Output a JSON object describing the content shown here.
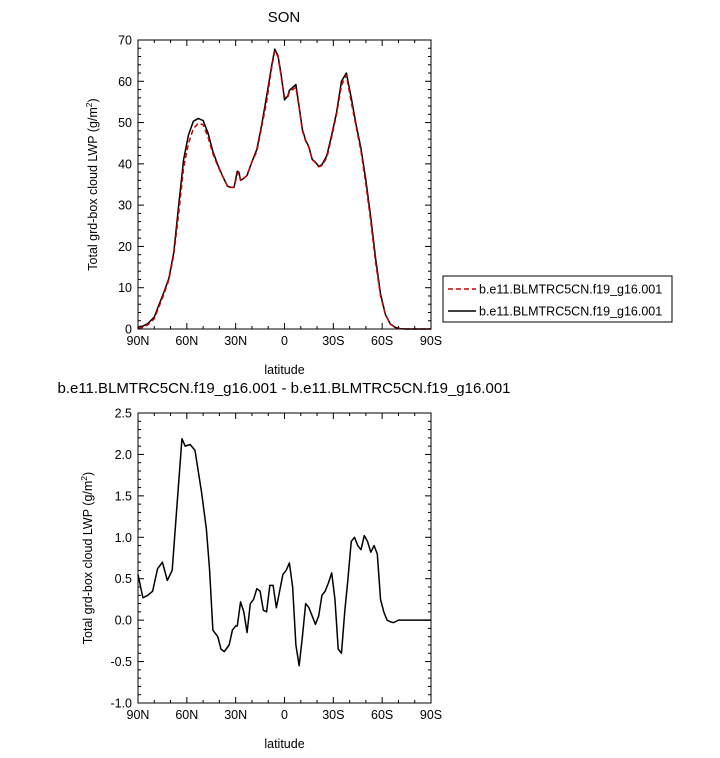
{
  "chart_data": [
    {
      "type": "line",
      "title": "SON",
      "xlabel": "latitude",
      "ylabel": "Total grd-box cloud LWP",
      "yunit_base": "g/m",
      "yunit_sup": "2",
      "xlim": [
        90,
        -90
      ],
      "ylim": [
        0,
        70
      ],
      "x_ticks": [
        90,
        60,
        30,
        0,
        -30,
        -60,
        -90
      ],
      "x_tick_labels": [
        "90N",
        "60N",
        "30N",
        "0",
        "30S",
        "60S",
        "90S"
      ],
      "y_ticks": [
        0,
        10,
        20,
        30,
        40,
        50,
        60,
        70
      ],
      "y_tick_labels": [
        "0",
        "10",
        "20",
        "30",
        "40",
        "50",
        "60",
        "70"
      ],
      "legend": "right",
      "series": [
        {
          "name": "b.e11.BLMTRC5CN.f19_g16.001",
          "color": "#cc0000",
          "dash": "dashed",
          "x": [
            90,
            87,
            84,
            80,
            77,
            74,
            71,
            68,
            65,
            62,
            59,
            56,
            53,
            50,
            47,
            44,
            41,
            38,
            35,
            33,
            31,
            29,
            28,
            27,
            25,
            23,
            20,
            17,
            14,
            11,
            8,
            6,
            4,
            2,
            0,
            -2,
            -3,
            -5,
            -7,
            -9,
            -11,
            -13,
            -15,
            -17,
            -19,
            -21,
            -23,
            -26,
            -29,
            -32,
            -35,
            -38,
            -41,
            -44,
            -47,
            -50,
            -53,
            -56,
            -59,
            -62,
            -65,
            -68,
            -71,
            -74,
            -77,
            -80,
            -84,
            -87,
            -90
          ],
          "y": [
            0.2,
            0.4,
            1,
            2.5,
            5.5,
            8.5,
            12,
            18,
            28,
            39,
            45,
            48.5,
            49.8,
            49.5,
            46.5,
            42.5,
            39.5,
            37,
            34.6,
            34.3,
            34.3,
            37.5,
            38,
            36,
            36.5,
            37.2,
            40.5,
            43,
            49,
            55,
            63,
            67.3,
            66,
            61,
            56.2,
            56,
            57.5,
            58,
            58.5,
            53.5,
            48,
            45.5,
            44,
            41,
            40.3,
            39.3,
            39.6,
            41.5,
            46.5,
            52,
            59,
            61.5,
            55,
            49,
            43,
            35,
            26,
            16,
            8,
            3.5,
            1.2,
            0.4,
            0.1,
            0,
            0,
            0,
            0,
            0,
            0
          ]
        },
        {
          "name": "b.e11.BLMTRC5CN.f19_g16.001",
          "color": "#000000",
          "dash": "solid",
          "x": [
            90,
            87,
            84,
            80,
            77,
            74,
            71,
            68,
            65,
            62,
            59,
            56,
            53,
            50,
            47,
            44,
            41,
            38,
            35,
            33,
            31,
            29,
            28,
            27,
            25,
            23,
            20,
            17,
            14,
            11,
            8,
            6,
            4,
            2,
            0,
            -2,
            -3,
            -5,
            -7,
            -9,
            -11,
            -13,
            -15,
            -17,
            -19,
            -21,
            -23,
            -26,
            -29,
            -32,
            -35,
            -38,
            -41,
            -44,
            -47,
            -50,
            -53,
            -56,
            -59,
            -62,
            -65,
            -68,
            -71,
            -74,
            -77,
            -80,
            -84,
            -87,
            -90
          ],
          "y": [
            0.5,
            0.7,
            1.3,
            2.9,
            6,
            9,
            12.3,
            18.6,
            30,
            41,
            47,
            50.3,
            51,
            50.5,
            47.5,
            43,
            39.8,
            37,
            34.6,
            34.3,
            34.3,
            38.2,
            38,
            36,
            36.5,
            37.2,
            40.5,
            43.5,
            49.5,
            56.3,
            63.5,
            67.8,
            66.2,
            61.5,
            55.5,
            56.4,
            57.8,
            58.5,
            59.2,
            53.8,
            48.3,
            45.7,
            44.1,
            41.1,
            40.4,
            39.4,
            39.8,
            42,
            47,
            52.5,
            60,
            62,
            56,
            49.5,
            43.7,
            36,
            27,
            17,
            8.5,
            3.5,
            1.2,
            0.4,
            0.1,
            0,
            0,
            0,
            0,
            0,
            0
          ]
        }
      ]
    },
    {
      "type": "line",
      "title": "b.e11.BLMTRC5CN.f19_g16.001 - b.e11.BLMTRC5CN.f19_g16.001",
      "xlabel": "latitude",
      "ylabel": "Total grd-box cloud LWP",
      "yunit_base": "g/m",
      "yunit_sup": "2",
      "xlim": [
        90,
        -90
      ],
      "ylim": [
        -1.0,
        2.5
      ],
      "x_ticks": [
        90,
        60,
        30,
        0,
        -30,
        -60,
        -90
      ],
      "x_tick_labels": [
        "90N",
        "60N",
        "30N",
        "0",
        "30S",
        "60S",
        "90S"
      ],
      "y_ticks": [
        -1.0,
        -0.5,
        0.0,
        0.5,
        1.0,
        1.5,
        2.0,
        2.5
      ],
      "y_tick_labels": [
        "-1.0",
        "-0.5",
        "0.0",
        "0.5",
        "1.0",
        "1.5",
        "2.0",
        "2.5"
      ],
      "series": [
        {
          "color": "#000000",
          "dash": "solid",
          "x": [
            90,
            87,
            84,
            81,
            78,
            75,
            72,
            69,
            66,
            63,
            61,
            58,
            55,
            51,
            48,
            46,
            44,
            41,
            39,
            37,
            34,
            32,
            30,
            29,
            27,
            25,
            23,
            21,
            19,
            17,
            15,
            13,
            11,
            9,
            7,
            5,
            3,
            1,
            -1,
            -3,
            -5,
            -7,
            -9,
            -11,
            -13,
            -15,
            -17,
            -19,
            -21,
            -23,
            -25,
            -27,
            -29,
            -31,
            -33,
            -35,
            -37,
            -39,
            -41,
            -43,
            -45,
            -47,
            -49,
            -51,
            -53,
            -55,
            -57,
            -59,
            -61,
            -63,
            -65,
            -67,
            -70,
            -73,
            -76,
            -80,
            -85,
            -90
          ],
          "y": [
            0.55,
            0.27,
            0.3,
            0.35,
            0.62,
            0.7,
            0.48,
            0.6,
            1.4,
            2.19,
            2.1,
            2.12,
            2.05,
            1.55,
            1.1,
            0.6,
            -0.12,
            -0.2,
            -0.35,
            -0.38,
            -0.3,
            -0.12,
            -0.07,
            -0.07,
            0.22,
            0.1,
            -0.15,
            0.2,
            0.25,
            0.38,
            0.35,
            0.12,
            0.1,
            0.42,
            0.42,
            0.15,
            0.35,
            0.55,
            0.6,
            0.69,
            0.4,
            -0.3,
            -0.55,
            -0.2,
            0.2,
            0.15,
            0.05,
            -0.05,
            0.05,
            0.3,
            0.35,
            0.45,
            0.57,
            0.25,
            -0.35,
            -0.4,
            0.1,
            0.5,
            0.95,
            1.0,
            0.9,
            0.85,
            1.02,
            0.95,
            0.82,
            0.9,
            0.8,
            0.25,
            0.1,
            0.0,
            -0.02,
            -0.03,
            0.0,
            0.0,
            0.0,
            0.0,
            0.0,
            0.0
          ]
        }
      ]
    }
  ]
}
